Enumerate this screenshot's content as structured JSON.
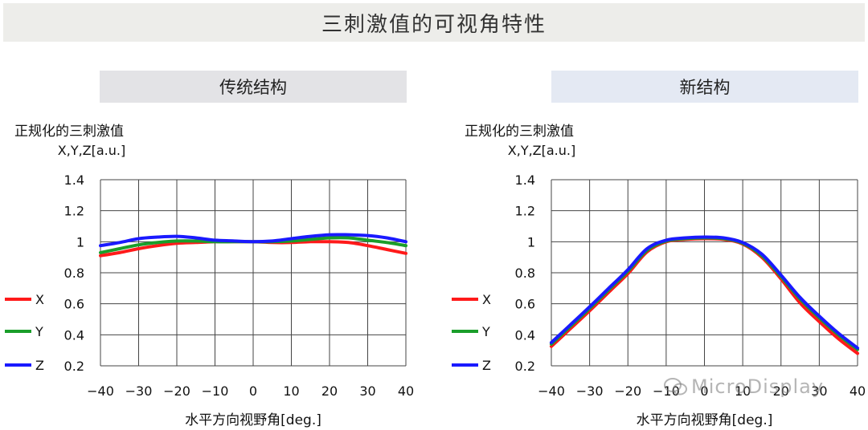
{
  "page": {
    "title": "三刺激值的可视角特性"
  },
  "panels": [
    {
      "title": "传统结构"
    },
    {
      "title": "新结构"
    }
  ],
  "watermark": "MicroDisplay",
  "colors": {
    "X": "#ff1a1a",
    "Y": "#1a9e2a",
    "Z": "#1a1aff"
  },
  "chart_data": [
    {
      "type": "line",
      "ylabel": "正规化的三刺激值",
      "ylabel_unit": "X,Y,Z[a.u.]",
      "xlabel": "水平方向视野角[deg.]",
      "xlim": [
        -40,
        40
      ],
      "ylim": [
        0.2,
        1.4
      ],
      "xticks": [
        "−40",
        "−30",
        "−20",
        "−10",
        "0",
        "10",
        "20",
        "30",
        "40"
      ],
      "yticks": [
        "1.4",
        "1.2",
        "1",
        "0.8",
        "0.6",
        "0.4",
        "0.2"
      ],
      "grid": true,
      "legend_position": "left",
      "series": [
        {
          "name": "X",
          "color": "#ff1a1a",
          "x": [
            -40,
            -35,
            -30,
            -25,
            -20,
            -15,
            -10,
            -5,
            0,
            5,
            10,
            15,
            20,
            25,
            30,
            35,
            40
          ],
          "y": [
            0.91,
            0.93,
            0.955,
            0.975,
            0.99,
            0.995,
            1.0,
            1.0,
            1.0,
            0.995,
            0.995,
            1.0,
            1.0,
            0.995,
            0.975,
            0.95,
            0.925
          ]
        },
        {
          "name": "Y",
          "color": "#1a9e2a",
          "x": [
            -40,
            -35,
            -30,
            -25,
            -20,
            -15,
            -10,
            -5,
            0,
            5,
            10,
            15,
            20,
            25,
            30,
            35,
            40
          ],
          "y": [
            0.93,
            0.955,
            0.98,
            0.995,
            1.005,
            1.005,
            1.0,
            1.0,
            1.0,
            1.0,
            1.005,
            1.015,
            1.025,
            1.025,
            1.01,
            0.995,
            0.975
          ]
        },
        {
          "name": "Z",
          "color": "#1a1aff",
          "x": [
            -40,
            -35,
            -30,
            -25,
            -20,
            -15,
            -10,
            -5,
            0,
            5,
            10,
            15,
            20,
            25,
            30,
            35,
            40
          ],
          "y": [
            0.975,
            0.995,
            1.02,
            1.03,
            1.035,
            1.025,
            1.01,
            1.005,
            1.0,
            1.005,
            1.02,
            1.035,
            1.045,
            1.045,
            1.04,
            1.025,
            1.0
          ]
        }
      ]
    },
    {
      "type": "line",
      "ylabel": "正规化的三刺激值",
      "ylabel_unit": "X,Y,Z[a.u.]",
      "xlabel": "水平方向视野角[deg.]",
      "xlim": [
        -40,
        40
      ],
      "ylim": [
        0.2,
        1.4
      ],
      "xticks": [
        "−40",
        "−30",
        "−20",
        "−10",
        "0",
        "10",
        "20",
        "30",
        "40"
      ],
      "yticks": [
        "1.4",
        "1.2",
        "1",
        "0.8",
        "0.6",
        "0.4",
        "0.2"
      ],
      "grid": true,
      "legend_position": "left",
      "series": [
        {
          "name": "X",
          "color": "#ff1a1a",
          "x": [
            -40,
            -35,
            -30,
            -25,
            -20,
            -15,
            -10,
            -5,
            0,
            5,
            10,
            15,
            20,
            25,
            30,
            35,
            40
          ],
          "y": [
            0.325,
            0.44,
            0.555,
            0.675,
            0.795,
            0.935,
            1.0,
            1.015,
            1.02,
            1.015,
            0.985,
            0.9,
            0.76,
            0.605,
            0.485,
            0.375,
            0.28
          ]
        },
        {
          "name": "Y",
          "color": "#1a9e2a",
          "x": [
            -40,
            -35,
            -30,
            -25,
            -20,
            -15,
            -10,
            -5,
            0,
            5,
            10,
            15,
            20,
            25,
            30,
            35,
            40
          ],
          "y": [
            0.34,
            0.455,
            0.57,
            0.69,
            0.81,
            0.945,
            1.005,
            1.02,
            1.025,
            1.02,
            0.99,
            0.91,
            0.775,
            0.63,
            0.51,
            0.4,
            0.305
          ]
        },
        {
          "name": "Z",
          "color": "#1a1aff",
          "x": [
            -40,
            -35,
            -30,
            -25,
            -20,
            -15,
            -10,
            -5,
            0,
            5,
            10,
            15,
            20,
            25,
            30,
            35,
            40
          ],
          "y": [
            0.35,
            0.465,
            0.58,
            0.7,
            0.82,
            0.955,
            1.01,
            1.025,
            1.03,
            1.025,
            0.995,
            0.92,
            0.785,
            0.64,
            0.52,
            0.41,
            0.315
          ]
        }
      ]
    }
  ]
}
